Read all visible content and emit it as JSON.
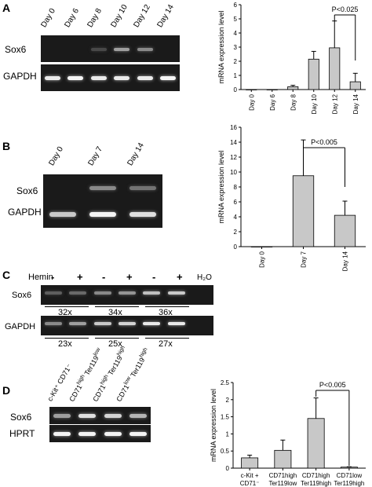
{
  "panels": {
    "A": {
      "letter": "A",
      "lanes": [
        "Day 0",
        "Day 6",
        "Day 8",
        "Day 10",
        "Day 12",
        "Day 14"
      ],
      "gel_rows": [
        "Sox6",
        "GAPDH"
      ],
      "sox6_band_intensity": [
        0,
        0,
        0.15,
        0.55,
        0.45,
        0
      ],
      "gapdh_band_intensity": [
        0.9,
        0.95,
        0.9,
        0.9,
        0.9,
        0.95
      ]
    },
    "B": {
      "letter": "B",
      "lanes": [
        "Day 0",
        "Day 7",
        "Day 14"
      ],
      "gel_rows": [
        "Sox6",
        "GAPDH"
      ],
      "sox6_band_intensity": [
        0,
        0.45,
        0.35
      ],
      "gapdh_band_intensity": [
        0.75,
        0.95,
        0.85
      ]
    },
    "C": {
      "letter": "C",
      "hemin_label": "Hemin",
      "signs": [
        "-",
        "+",
        "-",
        "+",
        "-",
        "+"
      ],
      "water_label": "H₂O",
      "gel_rows": [
        "Sox6",
        "GAPDH"
      ],
      "sox6_cycles": [
        "32x",
        "34x",
        "36x"
      ],
      "gapdh_cycles": [
        "23x",
        "25x",
        "27x"
      ],
      "sox6_band_intensity": [
        0.25,
        0.3,
        0.45,
        0.5,
        0.7,
        0.75,
        0
      ],
      "gapdh_band_intensity": [
        0.45,
        0.55,
        0.75,
        0.8,
        0.9,
        0.9,
        0
      ]
    },
    "D": {
      "letter": "D",
      "gel_rows": [
        "Sox6",
        "HPRT"
      ],
      "lane_labels": [
        {
          "main": "c-Kit⁺ CD71⁻",
          "sub": ""
        },
        {
          "main": "CD71",
          "sup": "high",
          "main2": "Ter119",
          "sup2": "low"
        },
        {
          "main": "CD71",
          "sup": "high",
          "main2": "Ter119",
          "sup2": "high"
        },
        {
          "main": "CD71",
          "sup": "low",
          "main2": "Ter119",
          "sup2": "high"
        }
      ],
      "sox6_band_intensity": [
        0.55,
        0.85,
        0.8,
        0.65
      ],
      "hprt_band_intensity": [
        0.95,
        0.95,
        0.95,
        0.95
      ]
    }
  },
  "chart_data": [
    {
      "type": "bar",
      "panel": "A",
      "categories": [
        "Day 0",
        "Day 6",
        "Day 8",
        "Day 10",
        "Day 12",
        "Day 14"
      ],
      "values": [
        0,
        0,
        0.2,
        2.15,
        2.95,
        0.55
      ],
      "errors": [
        0,
        0,
        0.1,
        0.55,
        1.9,
        0.6
      ],
      "ylabel": "mRNA expression level",
      "ylim": [
        0,
        6
      ],
      "yticks": [
        0,
        1,
        2,
        3,
        4,
        5,
        6
      ],
      "annotation": "P<0.025",
      "color": "#c8c8c8"
    },
    {
      "type": "bar",
      "panel": "B",
      "categories": [
        "Day 0",
        "Day 7",
        "Day 14"
      ],
      "values": [
        0,
        9.5,
        4.2
      ],
      "errors": [
        0,
        4.8,
        1.9
      ],
      "ylabel": "mRNA expression level",
      "ylim": [
        0,
        16
      ],
      "yticks": [
        0,
        2,
        4,
        6,
        8,
        10,
        12,
        14,
        16
      ],
      "annotation": "P<0.005",
      "color": "#c8c8c8"
    },
    {
      "type": "bar",
      "panel": "D",
      "categories": [
        "c-Kit + CD71⁻",
        "CD71high Ter119low",
        "CD71high Ter119high",
        "CD71low Ter119high"
      ],
      "values": [
        0.3,
        0.52,
        1.45,
        0.03
      ],
      "errors": [
        0.08,
        0.3,
        0.6,
        0.01
      ],
      "ylabel": "mRNA expression level",
      "ylim": [
        0,
        2.5
      ],
      "yticks": [
        0,
        0.5,
        1,
        1.5,
        2,
        2.5
      ],
      "annotation": "P<0.005",
      "color": "#c8c8c8"
    }
  ]
}
